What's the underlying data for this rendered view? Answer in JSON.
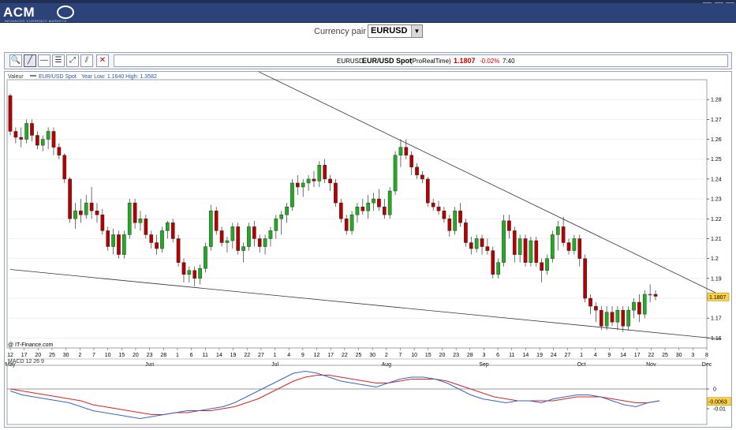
{
  "app": {
    "logo_text": "ACM",
    "logo_subtitle": "ADVANCED CURRENCY MARKETS"
  },
  "pair_selector": {
    "label": "Currency pair :",
    "selected": "EURUSD"
  },
  "toolbar": {
    "tools": [
      {
        "name": "zoom-tool-button",
        "icon": "magnifier-icon",
        "glyph": "🔍"
      },
      {
        "name": "trendline-tool-button",
        "icon": "trendline-icon",
        "glyph": "╱"
      },
      {
        "name": "horizontal-line-tool-button",
        "icon": "horizontal-line-icon",
        "glyph": "—"
      },
      {
        "name": "fibonacci-tool-button",
        "icon": "fibonacci-icon",
        "glyph": "☰"
      },
      {
        "name": "channel-tool-button",
        "icon": "channel-icon",
        "glyph": "⤢"
      },
      {
        "name": "parallel-lines-tool-button",
        "icon": "parallel-lines-icon",
        "glyph": "⫽"
      },
      {
        "name": "delete-tool-button",
        "icon": "delete-icon",
        "glyph": "✕"
      }
    ]
  },
  "quote": {
    "symbol": "EURUSD",
    "name": "EUR/USD Spot",
    "source": "(ProRealTime)",
    "price": "1.1807",
    "change": "-0.02%",
    "time": "7:40",
    "price_color": "#d00000"
  },
  "chart_header": {
    "label": "Valeur",
    "series_name": "EUR/USD Spot",
    "range_text": "Year Low: 1.1640 High: 1.3582"
  },
  "watermark": "@ IT-Finance.com",
  "last_price_label": "1.1807",
  "macd": {
    "label": "MACD 12 26 9",
    "value_label": "-0.0063",
    "ticks": [
      "0",
      "-0.01"
    ]
  },
  "colors": {
    "up_candle": "#22aa22",
    "down_candle": "#b40000",
    "macd_line": "#3366cc",
    "signal_line": "#dd2222",
    "accent_banner": "#2c4379"
  },
  "chart_data": {
    "type": "candlestick",
    "series_name": "EUR/USD Spot",
    "ylim": [
      1.155,
      1.29
    ],
    "y_ticks": [
      1.28,
      1.27,
      1.26,
      1.25,
      1.24,
      1.23,
      1.22,
      1.21,
      1.2,
      1.19,
      1.18,
      1.17,
      1.16
    ],
    "y_tick_labels": [
      "1.28",
      "1.27",
      "1.26",
      "1.25",
      "1.24",
      "1.23",
      "1.22",
      "1.21",
      "1.2",
      "1.19",
      "1.18",
      "1.17",
      "1.16"
    ],
    "x_day_labels": [
      "12",
      "17",
      "20",
      "25",
      "30",
      "2",
      "7",
      "10",
      "15",
      "20",
      "23",
      "28",
      "1",
      "6",
      "11",
      "14",
      "19",
      "22",
      "27",
      "1",
      "4",
      "9",
      "12",
      "17",
      "22",
      "25",
      "30",
      "2",
      "7",
      "10",
      "15",
      "20",
      "23",
      "28",
      "3",
      "6",
      "11",
      "14",
      "19",
      "24",
      "27",
      "1",
      "4",
      "9",
      "14",
      "17",
      "22",
      "25",
      "30",
      "3",
      "8"
    ],
    "x_month_labels": [
      {
        "label": "May",
        "at_day_index": 0
      },
      {
        "label": "Jun",
        "at_day_index": 10
      },
      {
        "label": "Jul",
        "at_day_index": 19
      },
      {
        "label": "Aug",
        "at_day_index": 27
      },
      {
        "label": "Sep",
        "at_day_index": 34
      },
      {
        "label": "Oct",
        "at_day_index": 41
      },
      {
        "label": "Nov",
        "at_day_index": 46
      },
      {
        "label": "Dec",
        "at_day_index": 50
      }
    ],
    "ohlc": [
      [
        1.282,
        1.283,
        1.262,
        1.264
      ],
      [
        1.264,
        1.266,
        1.258,
        1.261
      ],
      [
        1.261,
        1.266,
        1.256,
        1.26
      ],
      [
        1.26,
        1.27,
        1.258,
        1.268
      ],
      [
        1.268,
        1.27,
        1.259,
        1.262
      ],
      [
        1.262,
        1.264,
        1.255,
        1.257
      ],
      [
        1.257,
        1.262,
        1.254,
        1.26
      ],
      [
        1.26,
        1.266,
        1.255,
        1.264
      ],
      [
        1.264,
        1.266,
        1.252,
        1.256
      ],
      [
        1.256,
        1.258,
        1.25,
        1.252
      ],
      [
        1.252,
        1.253,
        1.238,
        1.24
      ],
      [
        1.24,
        1.241,
        1.218,
        1.22
      ],
      [
        1.22,
        1.228,
        1.215,
        1.224
      ],
      [
        1.224,
        1.23,
        1.218,
        1.222
      ],
      [
        1.222,
        1.232,
        1.22,
        1.228
      ],
      [
        1.228,
        1.236,
        1.22,
        1.224
      ],
      [
        1.224,
        1.228,
        1.218,
        1.222
      ],
      [
        1.222,
        1.225,
        1.212,
        1.214
      ],
      [
        1.214,
        1.216,
        1.204,
        1.206
      ],
      [
        1.206,
        1.215,
        1.202,
        1.212
      ],
      [
        1.212,
        1.214,
        1.2,
        1.202
      ],
      [
        1.202,
        1.214,
        1.2,
        1.212
      ],
      [
        1.212,
        1.23,
        1.21,
        1.228
      ],
      [
        1.228,
        1.23,
        1.215,
        1.218
      ],
      [
        1.218,
        1.224,
        1.214,
        1.22
      ],
      [
        1.22,
        1.222,
        1.21,
        1.212
      ],
      [
        1.212,
        1.214,
        1.205,
        1.208
      ],
      [
        1.208,
        1.212,
        1.202,
        1.205
      ],
      [
        1.205,
        1.216,
        1.203,
        1.214
      ],
      [
        1.214,
        1.219,
        1.21,
        1.218
      ],
      [
        1.218,
        1.22,
        1.208,
        1.21
      ],
      [
        1.21,
        1.212,
        1.196,
        1.198
      ],
      [
        1.198,
        1.2,
        1.188,
        1.192
      ],
      [
        1.192,
        1.196,
        1.188,
        1.194
      ],
      [
        1.194,
        1.196,
        1.186,
        1.19
      ],
      [
        1.19,
        1.197,
        1.187,
        1.195
      ],
      [
        1.195,
        1.208,
        1.193,
        1.206
      ],
      [
        1.206,
        1.227,
        1.204,
        1.224
      ],
      [
        1.224,
        1.226,
        1.212,
        1.214
      ],
      [
        1.214,
        1.216,
        1.206,
        1.208
      ],
      [
        1.208,
        1.211,
        1.203,
        1.209
      ],
      [
        1.209,
        1.218,
        1.205,
        1.216
      ],
      [
        1.216,
        1.218,
        1.202,
        1.204
      ],
      [
        1.204,
        1.208,
        1.198,
        1.206
      ],
      [
        1.206,
        1.218,
        1.204,
        1.216
      ],
      [
        1.216,
        1.219,
        1.206,
        1.21
      ],
      [
        1.21,
        1.212,
        1.203,
        1.206
      ],
      [
        1.206,
        1.212,
        1.202,
        1.21
      ],
      [
        1.21,
        1.216,
        1.206,
        1.214
      ],
      [
        1.214,
        1.222,
        1.21,
        1.22
      ],
      [
        1.22,
        1.224,
        1.212,
        1.222
      ],
      [
        1.222,
        1.228,
        1.218,
        1.226
      ],
      [
        1.226,
        1.24,
        1.224,
        1.238
      ],
      [
        1.238,
        1.242,
        1.232,
        1.236
      ],
      [
        1.236,
        1.24,
        1.231,
        1.238
      ],
      [
        1.238,
        1.242,
        1.234,
        1.24
      ],
      [
        1.24,
        1.244,
        1.236,
        1.239
      ],
      [
        1.239,
        1.249,
        1.236,
        1.247
      ],
      [
        1.247,
        1.25,
        1.238,
        1.24
      ],
      [
        1.24,
        1.242,
        1.234,
        1.238
      ],
      [
        1.238,
        1.24,
        1.226,
        1.228
      ],
      [
        1.228,
        1.23,
        1.218,
        1.22
      ],
      [
        1.22,
        1.222,
        1.212,
        1.214
      ],
      [
        1.214,
        1.224,
        1.212,
        1.222
      ],
      [
        1.222,
        1.228,
        1.218,
        1.226
      ],
      [
        1.226,
        1.23,
        1.222,
        1.224
      ],
      [
        1.224,
        1.232,
        1.22,
        1.228
      ],
      [
        1.228,
        1.233,
        1.224,
        1.23
      ],
      [
        1.23,
        1.235,
        1.224,
        1.226
      ],
      [
        1.226,
        1.23,
        1.22,
        1.222
      ],
      [
        1.222,
        1.236,
        1.22,
        1.234
      ],
      [
        1.234,
        1.254,
        1.232,
        1.252
      ],
      [
        1.252,
        1.26,
        1.246,
        1.256
      ],
      [
        1.256,
        1.26,
        1.25,
        1.252
      ],
      [
        1.252,
        1.254,
        1.242,
        1.246
      ],
      [
        1.246,
        1.248,
        1.24,
        1.242
      ],
      [
        1.242,
        1.244,
        1.238,
        1.24
      ],
      [
        1.24,
        1.241,
        1.226,
        1.228
      ],
      [
        1.228,
        1.23,
        1.224,
        1.226
      ],
      [
        1.226,
        1.229,
        1.222,
        1.224
      ],
      [
        1.224,
        1.226,
        1.218,
        1.22
      ],
      [
        1.22,
        1.222,
        1.211,
        1.214
      ],
      [
        1.214,
        1.226,
        1.212,
        1.224
      ],
      [
        1.224,
        1.228,
        1.216,
        1.218
      ],
      [
        1.218,
        1.22,
        1.206,
        1.208
      ],
      [
        1.208,
        1.211,
        1.202,
        1.205
      ],
      [
        1.205,
        1.212,
        1.203,
        1.21
      ],
      [
        1.21,
        1.212,
        1.202,
        1.206
      ],
      [
        1.206,
        1.21,
        1.202,
        1.204
      ],
      [
        1.204,
        1.206,
        1.19,
        1.192
      ],
      [
        1.192,
        1.2,
        1.19,
        1.198
      ],
      [
        1.198,
        1.222,
        1.196,
        1.219
      ],
      [
        1.219,
        1.222,
        1.21,
        1.214
      ],
      [
        1.214,
        1.216,
        1.198,
        1.202
      ],
      [
        1.202,
        1.212,
        1.198,
        1.21
      ],
      [
        1.21,
        1.212,
        1.196,
        1.198
      ],
      [
        1.198,
        1.211,
        1.196,
        1.209
      ],
      [
        1.209,
        1.211,
        1.196,
        1.198
      ],
      [
        1.198,
        1.2,
        1.188,
        1.194
      ],
      [
        1.194,
        1.202,
        1.192,
        1.2
      ],
      [
        1.2,
        1.214,
        1.198,
        1.212
      ],
      [
        1.212,
        1.219,
        1.204,
        1.216
      ],
      [
        1.216,
        1.221,
        1.206,
        1.208
      ],
      [
        1.208,
        1.21,
        1.202,
        1.204
      ],
      [
        1.204,
        1.212,
        1.202,
        1.21
      ],
      [
        1.21,
        1.212,
        1.196,
        1.2
      ],
      [
        1.2,
        1.202,
        1.178,
        1.18
      ],
      [
        1.18,
        1.182,
        1.172,
        1.176
      ],
      [
        1.176,
        1.178,
        1.168,
        1.174
      ],
      [
        1.174,
        1.176,
        1.164,
        1.166
      ],
      [
        1.166,
        1.176,
        1.164,
        1.173
      ],
      [
        1.173,
        1.176,
        1.166,
        1.168
      ],
      [
        1.168,
        1.176,
        1.164,
        1.174
      ],
      [
        1.174,
        1.176,
        1.163,
        1.166
      ],
      [
        1.166,
        1.176,
        1.164,
        1.174
      ],
      [
        1.174,
        1.18,
        1.17,
        1.178
      ],
      [
        1.178,
        1.182,
        1.168,
        1.172
      ],
      [
        1.172,
        1.184,
        1.17,
        1.182
      ],
      [
        1.182,
        1.187,
        1.178,
        1.182
      ],
      [
        1.182,
        1.184,
        1.179,
        1.181
      ]
    ],
    "trendlines": [
      {
        "from_day_index": 14,
        "from_value": 1.307,
        "to_day_index": 51,
        "to_value": 1.1815
      },
      {
        "from_day_index": 0,
        "from_value": 1.1945,
        "to_day_index": 51,
        "to_value": 1.1595
      }
    ],
    "macd_indicator": {
      "label": "MACD 12 26 9",
      "macd": [
        -0.001,
        -0.003,
        -0.004,
        -0.005,
        -0.006,
        -0.007,
        -0.009,
        -0.011,
        -0.012,
        -0.013,
        -0.014,
        -0.015,
        -0.014,
        -0.013,
        -0.012,
        -0.011,
        -0.011,
        -0.01,
        -0.009,
        -0.007,
        -0.004,
        -0.001,
        0.002,
        0.005,
        0.008,
        0.009,
        0.008,
        0.006,
        0.004,
        0.003,
        0.002,
        0.001,
        0.003,
        0.005,
        0.006,
        0.006,
        0.005,
        0.003,
        0.0,
        -0.003,
        -0.005,
        -0.006,
        -0.007,
        -0.006,
        -0.006,
        -0.007,
        -0.005,
        -0.004,
        -0.003,
        -0.003,
        -0.004,
        -0.006,
        -0.008,
        -0.009,
        -0.007,
        -0.006
      ],
      "signal": [
        0.0,
        -0.001,
        -0.002,
        -0.003,
        -0.004,
        -0.005,
        -0.006,
        -0.008,
        -0.009,
        -0.01,
        -0.011,
        -0.012,
        -0.013,
        -0.013,
        -0.012,
        -0.012,
        -0.011,
        -0.011,
        -0.01,
        -0.009,
        -0.007,
        -0.005,
        -0.002,
        0.001,
        0.004,
        0.006,
        0.007,
        0.007,
        0.006,
        0.005,
        0.004,
        0.003,
        0.003,
        0.004,
        0.005,
        0.005,
        0.005,
        0.004,
        0.002,
        0.0,
        -0.002,
        -0.004,
        -0.005,
        -0.006,
        -0.006,
        -0.006,
        -0.006,
        -0.005,
        -0.004,
        -0.004,
        -0.004,
        -0.005,
        -0.006,
        -0.007,
        -0.007,
        -0.006
      ],
      "ylim": [
        -0.018,
        0.012
      ],
      "y_ticks": [
        0,
        -0.01
      ]
    }
  }
}
